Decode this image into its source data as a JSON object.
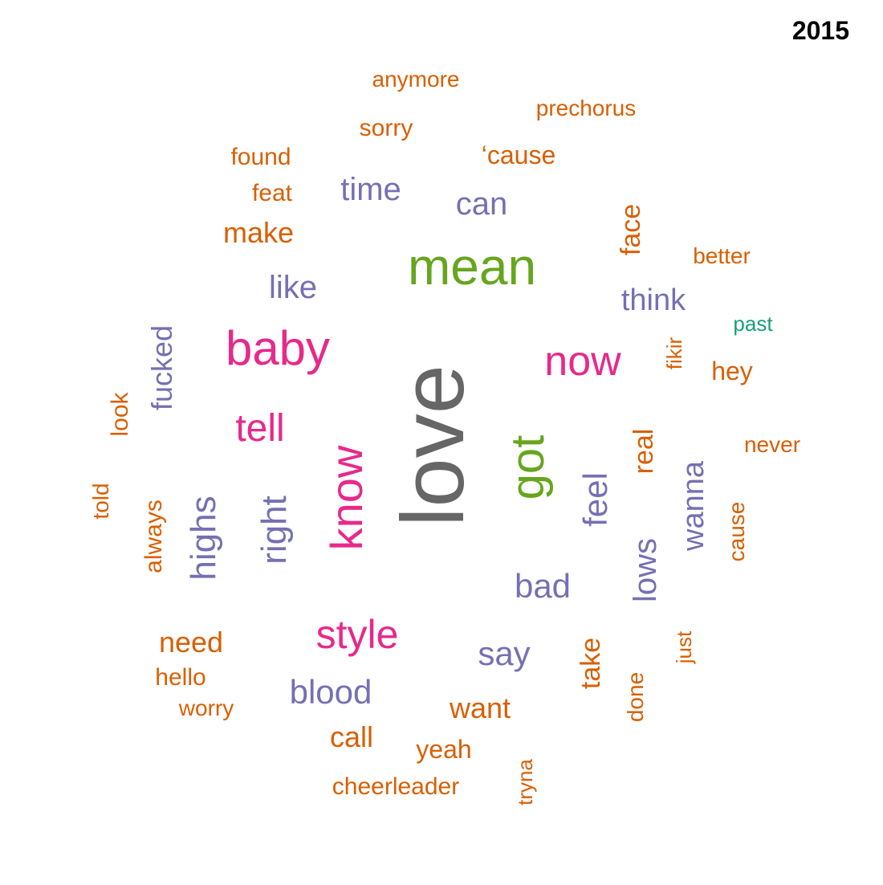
{
  "panel_label": "2015",
  "chart_data": {
    "type": "wordcloud",
    "color_groups": {
      "orange": "#d95f02",
      "purple": "#7570b3",
      "pink": "#e7298a",
      "green": "#66a61e",
      "gray": "#666666",
      "teal": "#1b9e77"
    },
    "words": [
      {
        "text": "love",
        "color": "#666666"
      },
      {
        "text": "mean",
        "color": "#66a61e"
      },
      {
        "text": "got",
        "color": "#66a61e"
      },
      {
        "text": "baby",
        "color": "#e7298a"
      },
      {
        "text": "know",
        "color": "#e7298a"
      },
      {
        "text": "now",
        "color": "#e7298a"
      },
      {
        "text": "style",
        "color": "#e7298a"
      },
      {
        "text": "tell",
        "color": "#e7298a"
      },
      {
        "text": "right",
        "color": "#7570b3"
      },
      {
        "text": "highs",
        "color": "#7570b3"
      },
      {
        "text": "feel",
        "color": "#7570b3"
      },
      {
        "text": "wanna",
        "color": "#7570b3"
      },
      {
        "text": "lows",
        "color": "#7570b3"
      },
      {
        "text": "bad",
        "color": "#7570b3"
      },
      {
        "text": "blood",
        "color": "#7570b3"
      },
      {
        "text": "say",
        "color": "#7570b3"
      },
      {
        "text": "like",
        "color": "#7570b3"
      },
      {
        "text": "time",
        "color": "#7570b3"
      },
      {
        "text": "can",
        "color": "#7570b3"
      },
      {
        "text": "think",
        "color": "#7570b3"
      },
      {
        "text": "fucked",
        "color": "#7570b3"
      },
      {
        "text": "make",
        "color": "#d95f02"
      },
      {
        "text": "need",
        "color": "#d95f02"
      },
      {
        "text": "want",
        "color": "#d95f02"
      },
      {
        "text": "call",
        "color": "#d95f02"
      },
      {
        "text": "take",
        "color": "#d95f02"
      },
      {
        "text": "real",
        "color": "#d95f02"
      },
      {
        "text": "face",
        "color": "#d95f02"
      },
      {
        "text": "‘cause",
        "color": "#d95f02"
      },
      {
        "text": "sorry",
        "color": "#d95f02"
      },
      {
        "text": "feat",
        "color": "#d95f02"
      },
      {
        "text": "found",
        "color": "#d95f02"
      },
      {
        "text": "yeah",
        "color": "#d95f02"
      },
      {
        "text": "hey",
        "color": "#d95f02"
      },
      {
        "text": "hello",
        "color": "#d95f02"
      },
      {
        "text": "look",
        "color": "#d95f02"
      },
      {
        "text": "always",
        "color": "#d95f02"
      },
      {
        "text": "cause",
        "color": "#d95f02"
      },
      {
        "text": "never",
        "color": "#d95f02"
      },
      {
        "text": "prechorus",
        "color": "#d95f02"
      },
      {
        "text": "anymore",
        "color": "#d95f02"
      },
      {
        "text": "better",
        "color": "#d95f02"
      },
      {
        "text": "cheerleader",
        "color": "#d95f02"
      },
      {
        "text": "worry",
        "color": "#d95f02"
      },
      {
        "text": "done",
        "color": "#d95f02"
      },
      {
        "text": "just",
        "color": "#d95f02"
      },
      {
        "text": "told",
        "color": "#d95f02"
      },
      {
        "text": "tryna",
        "color": "#d95f02"
      },
      {
        "text": "fikir",
        "color": "#d95f02"
      },
      {
        "text": "past",
        "color": "#1b9e77"
      }
    ]
  }
}
